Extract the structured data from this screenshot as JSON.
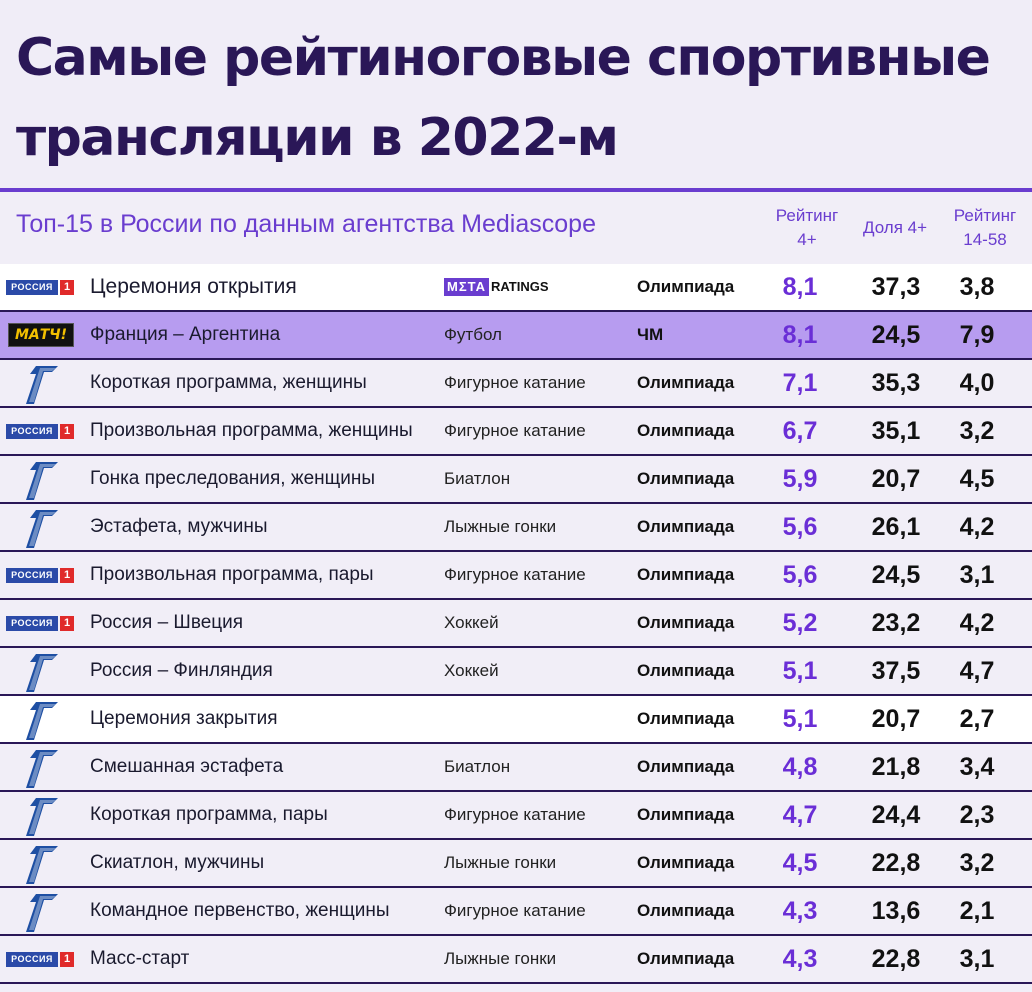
{
  "title": {
    "line1": "Самые рейтиноговые спортивные",
    "line2": "трансляции в 2022-м"
  },
  "subtitle": "Топ-15 в России по данным агентства Mediascope",
  "columns": {
    "rating4": "Рейтинг 4+",
    "share4": "Доля 4+",
    "rating1458": "Рейтинг 14-58"
  },
  "branding": {
    "meta_box": "MΣTA",
    "meta_text": "RATINGS"
  },
  "channel_logos": {
    "rossiya_text": "РОССИЯ",
    "rossiya_num": "1",
    "match_text": "МАТЧ!"
  },
  "colors": {
    "accent": "#6a3dcf",
    "title": "#2a1757",
    "highlight_row": "#b79cf0",
    "rating_value": "#6a2ed6"
  },
  "rows": [
    {
      "channel": "rossiya-1",
      "event": "Церемония открытия",
      "sport": "",
      "tournament": "Олимпиада",
      "rating": "8,1",
      "share": "37,3",
      "r1458": "3,8"
    },
    {
      "channel": "match",
      "event": "Франция – Аргентина",
      "sport": "Футбол",
      "tournament": "ЧМ",
      "rating": "8,1",
      "share": "24,5",
      "r1458": "7,9"
    },
    {
      "channel": "perviy",
      "event": "Короткая программа, женщины",
      "sport": "Фигурное катание",
      "tournament": "Олимпиада",
      "rating": "7,1",
      "share": "35,3",
      "r1458": "4,0"
    },
    {
      "channel": "rossiya-1",
      "event": "Произвольная программа, женщины",
      "sport": "Фигурное катание",
      "tournament": "Олимпиада",
      "rating": "6,7",
      "share": "35,1",
      "r1458": "3,2"
    },
    {
      "channel": "perviy",
      "event": "Гонка преследования, женщины",
      "sport": "Биатлон",
      "tournament": "Олимпиада",
      "rating": "5,9",
      "share": "20,7",
      "r1458": "4,5"
    },
    {
      "channel": "perviy",
      "event": "Эстафета, мужчины",
      "sport": "Лыжные гонки",
      "tournament": "Олимпиада",
      "rating": "5,6",
      "share": "26,1",
      "r1458": "4,2"
    },
    {
      "channel": "rossiya-1",
      "event": "Произвольная программа, пары",
      "sport": "Фигурное катание",
      "tournament": "Олимпиада",
      "rating": "5,6",
      "share": "24,5",
      "r1458": "3,1"
    },
    {
      "channel": "rossiya-1",
      "event": "Россия – Швеция",
      "sport": "Хоккей",
      "tournament": "Олимпиада",
      "rating": "5,2",
      "share": "23,2",
      "r1458": "4,2"
    },
    {
      "channel": "perviy",
      "event": "Россия – Финляндия",
      "sport": "Хоккей",
      "tournament": "Олимпиада",
      "rating": "5,1",
      "share": "37,5",
      "r1458": "4,7"
    },
    {
      "channel": "perviy",
      "event": "Церемония закрытия",
      "sport": "",
      "tournament": "Олимпиада",
      "rating": "5,1",
      "share": "20,7",
      "r1458": "2,7"
    },
    {
      "channel": "perviy",
      "event": "Смешанная эстафета",
      "sport": "Биатлон",
      "tournament": "Олимпиада",
      "rating": "4,8",
      "share": "21,8",
      "r1458": "3,4"
    },
    {
      "channel": "perviy",
      "event": "Короткая программа, пары",
      "sport": "Фигурное катание",
      "tournament": "Олимпиада",
      "rating": "4,7",
      "share": "24,4",
      "r1458": "2,3"
    },
    {
      "channel": "perviy",
      "event": "Скиатлон, мужчины",
      "sport": "Лыжные гонки",
      "tournament": "Олимпиада",
      "rating": "4,5",
      "share": "22,8",
      "r1458": "3,2"
    },
    {
      "channel": "perviy",
      "event": "Командное первенство, женщины",
      "sport": "Фигурное катание",
      "tournament": "Олимпиада",
      "rating": "4,3",
      "share": "13,6",
      "r1458": "2,1"
    },
    {
      "channel": "rossiya-1",
      "event": "Масс-старт",
      "sport": "Лыжные гонки",
      "tournament": "Олимпиада",
      "rating": "4,3",
      "share": "22,8",
      "r1458": "3,1"
    }
  ]
}
